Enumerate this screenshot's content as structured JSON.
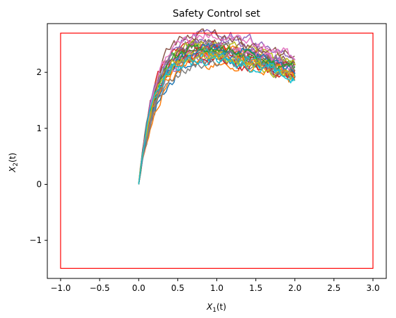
{
  "chart_data": {
    "type": "line",
    "title": "Safety Control set",
    "xlabel": {
      "main": "X",
      "sub": "1",
      "suffix": "(t)"
    },
    "ylabel": {
      "main": "X",
      "sub": "2",
      "suffix": "(t)"
    },
    "xlim": [
      -1.17,
      3.17
    ],
    "ylim": [
      -1.68,
      2.87
    ],
    "xticks": [
      -1.0,
      -0.5,
      0.0,
      0.5,
      1.0,
      1.5,
      2.0,
      2.5,
      3.0
    ],
    "xtick_labels": [
      "−1.0",
      "−0.5",
      "0.0",
      "0.5",
      "1.0",
      "1.5",
      "2.0",
      "2.5",
      "3.0"
    ],
    "yticks": [
      -1,
      0,
      1,
      2
    ],
    "ytick_labels": [
      "−1",
      "0",
      "1",
      "2"
    ],
    "grid": false,
    "safe_set": {
      "x": [
        -1.0,
        3.0
      ],
      "y": [
        -1.5,
        2.7
      ],
      "color": "#ff0000"
    },
    "trajectories": {
      "count": 30,
      "t_start": 0.0,
      "t_end": 2.0,
      "x_path": "t",
      "y_path": "2.6*(1-exp(-4.5*t)) - 0.13*t^2",
      "colors": [
        "#1f77b4",
        "#ff7f0e",
        "#2ca02c",
        "#d62728",
        "#9467bd",
        "#8c564b",
        "#e377c2",
        "#7f7f7f",
        "#bcbd22",
        "#17becf"
      ]
    }
  }
}
